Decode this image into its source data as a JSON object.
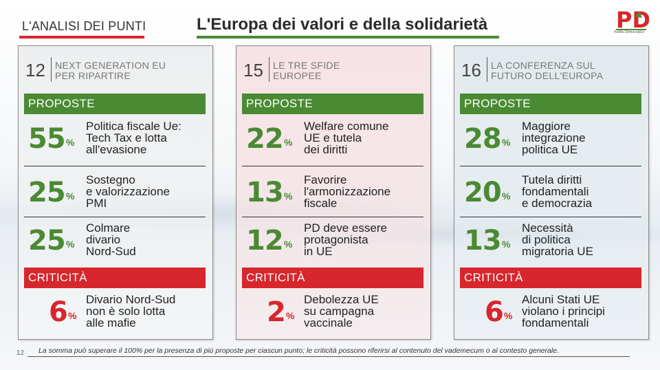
{
  "header": {
    "section_label": "L'ANALISI DEI PUNTI",
    "title": "L'Europa dei valori e della solidarietà",
    "logo_text": "PD",
    "logo_sub": "Partito Democratico",
    "colors": {
      "green": "#4a8a33",
      "red": "#d7262c"
    }
  },
  "panels": [
    {
      "number": "12",
      "title_line1": "NEXT GENERATION EU",
      "title_line2": "PER RIPARTIRE",
      "proposals_label": "PROPOSTE",
      "proposals": [
        {
          "pct": "55",
          "sign": "%",
          "line1": "Politica fiscale Ue:",
          "line2": "Tech Tax e lotta",
          "line3": "all'evasione"
        },
        {
          "pct": "25",
          "sign": "%",
          "line1": "Sostegno",
          "line2": "e valorizzazione",
          "line3": "PMI"
        },
        {
          "pct": "25",
          "sign": "%",
          "line1": "Colmare",
          "line2": "divario",
          "line3": "Nord-Sud"
        }
      ],
      "critical_label": "CRITICITÀ",
      "critical": {
        "pct": "6",
        "sign": "%",
        "line1": "Divario Nord-Sud",
        "line2": "non è solo lotta",
        "line3": "alle mafie"
      }
    },
    {
      "number": "15",
      "title_line1": "LE TRE SFIDE",
      "title_line2": "EUROPEE",
      "proposals_label": "PROPOSTE",
      "proposals": [
        {
          "pct": "22",
          "sign": "%",
          "line1": "Welfare comune",
          "line2": "UE e tutela",
          "line3": "dei diritti"
        },
        {
          "pct": "13",
          "sign": "%",
          "line1": "Favorire",
          "line2": "l'armonizzazione",
          "line3": "fiscale"
        },
        {
          "pct": "12",
          "sign": "%",
          "line1": "PD deve essere",
          "line2": "protagonista",
          "line3": "in UE"
        }
      ],
      "critical_label": "CRITICITÀ",
      "critical": {
        "pct": "2",
        "sign": "%",
        "line1": "Debolezza UE",
        "line2": "su campagna",
        "line3": "vaccinale"
      }
    },
    {
      "number": "16",
      "title_line1": "LA CONFERENZA SUL",
      "title_line2": "FUTURO DELL'EUROPA",
      "proposals_label": "PROPOSTE",
      "proposals": [
        {
          "pct": "28",
          "sign": "%",
          "line1": "Maggiore",
          "line2": "integrazione",
          "line3": "politica UE"
        },
        {
          "pct": "20",
          "sign": "%",
          "line1": "Tutela diritti",
          "line2": "fondamentali",
          "line3": "e democrazia"
        },
        {
          "pct": "13",
          "sign": "%",
          "line1": "Necessità",
          "line2": "di politica",
          "line3": "migratoria UE"
        }
      ],
      "critical_label": "CRITICITÀ",
      "critical": {
        "pct": "6",
        "sign": "%",
        "line1": "Alcuni Stati UE",
        "line2": "violano i principi",
        "line3": "fondamentali"
      }
    }
  ],
  "footer": {
    "page_number": "12",
    "note": "La somma può superare il 100% per la presenza di più proposte per ciascun punto; le criticità possono riferirsi al contenuto del vademecum o al contesto generale."
  }
}
